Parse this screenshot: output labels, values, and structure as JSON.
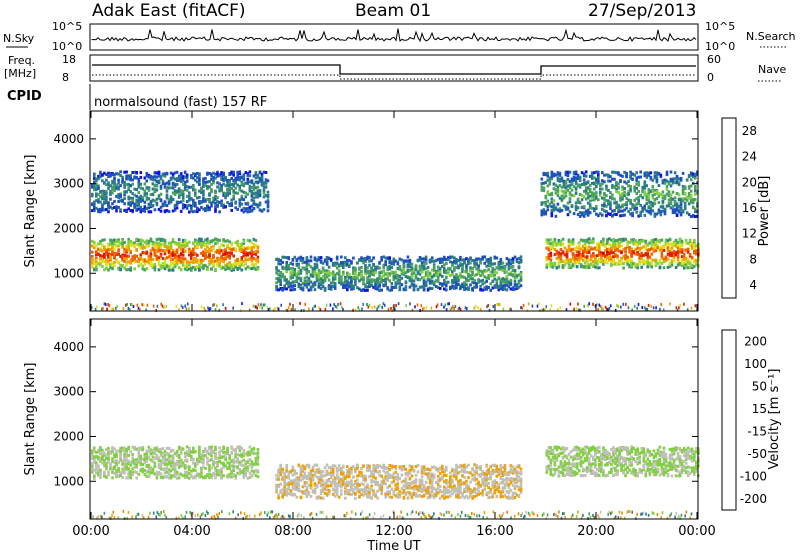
{
  "header": {
    "radar": "Adak East (fitACF)",
    "beam": "Beam 01",
    "date": "27/Sep/2013"
  },
  "top_panels": {
    "nsky_label": "N.Sky",
    "nsky_ticks": [
      "10^5",
      "10^0"
    ],
    "nsearch_label": "N.Search",
    "nsearch_ticks": [
      "10^5",
      "10^0"
    ],
    "freq_label": "Freq.",
    "freq_unit": "[MHz]",
    "freq_ticks": [
      "18",
      "8"
    ],
    "nave_label": "Nave",
    "nave_ticks": [
      "60",
      "0"
    ],
    "cpid_label": "CPID",
    "cpid_text": "normalsound (fast) 157 RF"
  },
  "colors": {
    "power_scale": [
      "#1010e0",
      "#2050c0",
      "#2a7a8a",
      "#4aa060",
      "#80d040",
      "#e0e020",
      "#f0a000",
      "#f06000",
      "#e02000",
      "#e00000"
    ],
    "velocity_scale": [
      "#1010e0",
      "#2050c0",
      "#2a7a8a",
      "#4aa060",
      "#80d040",
      "#c0c0b8",
      "#f0a000",
      "#f08000",
      "#f04000",
      "#e00000"
    ]
  },
  "chart_data": [
    {
      "type": "heatmap",
      "title": "",
      "xlabel": "",
      "ylabel": "Slant Range [km]",
      "colorbar_label": "Power [dB]",
      "colorbar_ticks": [
        "28",
        "24",
        "20",
        "16",
        "12",
        "8",
        "4"
      ],
      "clim": [
        0,
        32
      ],
      "ylim": [
        180,
        4600
      ],
      "yticks": [
        "4000",
        "3000",
        "2000",
        "1000"
      ],
      "xlim": [
        "00:00",
        "24:00"
      ],
      "features": [
        {
          "t_start": 0,
          "t_end": 6.6,
          "range_low": 1100,
          "range_high": 1800,
          "value": 22
        },
        {
          "t_start": 0,
          "t_end": 7.0,
          "range_low": 2400,
          "range_high": 3300,
          "value": 8
        },
        {
          "t_start": 7.3,
          "t_end": 17.0,
          "range_low": 650,
          "range_high": 1400,
          "value": 10
        },
        {
          "t_start": 18.0,
          "t_end": 24,
          "range_low": 1150,
          "range_high": 1800,
          "value": 22
        },
        {
          "t_start": 17.8,
          "t_end": 24,
          "range_low": 2300,
          "range_high": 3300,
          "value": 10
        }
      ]
    },
    {
      "type": "heatmap",
      "title": "",
      "xlabel": "Time UT",
      "ylabel": "Slant Range [km]",
      "colorbar_label": "Velocity [m s⁻¹]",
      "colorbar_ticks": [
        "200",
        "100",
        "50",
        "15",
        "-15",
        "-50",
        "-100",
        "-200"
      ],
      "clim": [
        -250,
        250
      ],
      "ylim": [
        180,
        4600
      ],
      "yticks": [
        "4000",
        "3000",
        "2000",
        "1000"
      ],
      "xticks": [
        "00:00",
        "04:00",
        "08:00",
        "12:00",
        "16:00",
        "20:00",
        "00:00"
      ],
      "xlim": [
        "00:00",
        "24:00"
      ],
      "features": [
        {
          "t_start": 0,
          "t_end": 6.6,
          "range_low": 1100,
          "range_high": 1800,
          "value": 0
        },
        {
          "t_start": 7.3,
          "t_end": 17.0,
          "range_low": 650,
          "range_high": 1400,
          "value": 40
        },
        {
          "t_start": 18.0,
          "t_end": 24,
          "range_low": 1150,
          "range_high": 1800,
          "value": 0
        }
      ]
    }
  ]
}
